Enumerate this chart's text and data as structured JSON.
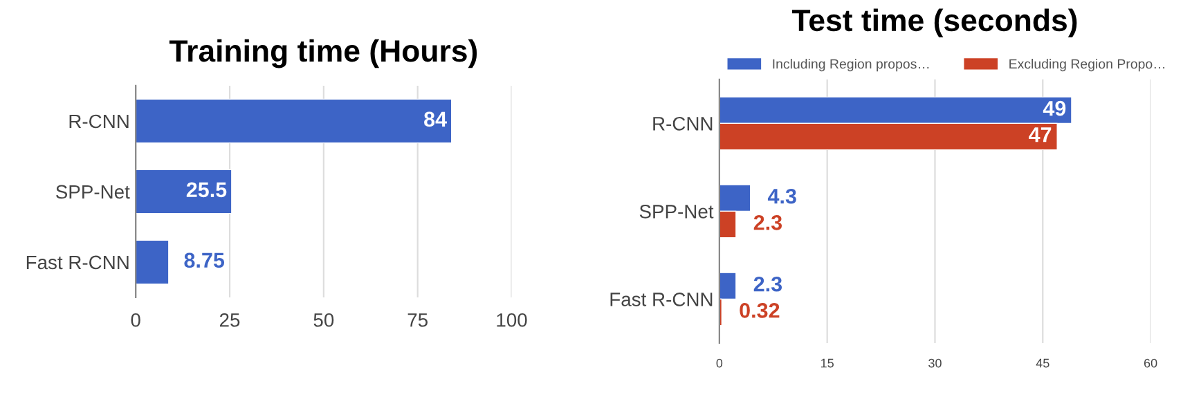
{
  "chart_data": [
    {
      "type": "bar",
      "orientation": "horizontal",
      "title": "Training time (Hours)",
      "categories": [
        "R-CNN",
        "SPP-Net",
        "Fast R-CNN"
      ],
      "series": [
        {
          "color": "#3d64c6",
          "values": [
            84,
            25.5,
            8.75
          ]
        }
      ],
      "xlim": [
        0,
        100
      ],
      "xticks": [
        0,
        25,
        50,
        75,
        100
      ],
      "grid": "x",
      "data_labels": true,
      "legend": false
    },
    {
      "type": "bar",
      "orientation": "horizontal",
      "title": "Test time (seconds)",
      "categories": [
        "R-CNN",
        "SPP-Net",
        "Fast R-CNN"
      ],
      "series": [
        {
          "name": "Including Region propos…",
          "color": "#3d64c6",
          "values": [
            49,
            4.3,
            2.3
          ]
        },
        {
          "name": "Excluding Region Propo…",
          "color": "#cc4125",
          "values": [
            47,
            2.3,
            0.32
          ]
        }
      ],
      "xlim": [
        0,
        60
      ],
      "xticks": [
        0,
        15,
        30,
        45,
        60
      ],
      "grid": "x",
      "data_labels": true,
      "legend": "top"
    }
  ]
}
